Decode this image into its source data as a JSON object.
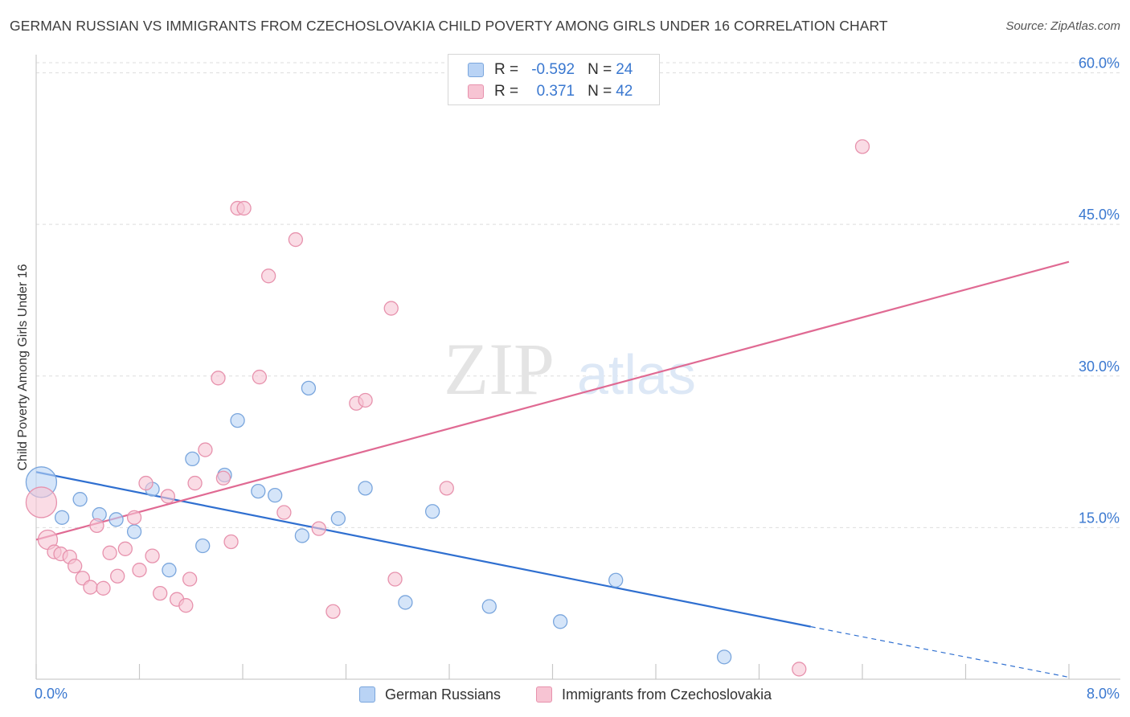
{
  "title": "GERMAN RUSSIAN VS IMMIGRANTS FROM CZECHOSLOVAKIA CHILD POVERTY AMONG GIRLS UNDER 16 CORRELATION CHART",
  "source": "Source: ZipAtlas.com",
  "watermark": {
    "zip": "ZIP",
    "atlas": "atlas"
  },
  "legend": {
    "r_label": "R =",
    "n_label": "N =",
    "rows": [
      {
        "r": "-0.592",
        "n": "24"
      },
      {
        "r": "0.371",
        "n": "42"
      }
    ]
  },
  "colors": {
    "series1_fill": "#b9d3f5",
    "series1_stroke": "#7aa6dd",
    "series1_line": "#2f6fd0",
    "series2_fill": "#f7c4d3",
    "series2_stroke": "#e792ad",
    "series2_line": "#e06a93",
    "tick_label": "#3a78d0"
  },
  "chart_data": {
    "type": "scatter",
    "title": "GERMAN RUSSIAN VS IMMIGRANTS FROM CZECHOSLOVAKIA CHILD POVERTY AMONG GIRLS UNDER 16 CORRELATION CHART",
    "xlabel": "",
    "ylabel": "Child Poverty Among Girls Under 16",
    "xlim": [
      0,
      8
    ],
    "ylim": [
      0,
      61
    ],
    "x_tick_labels": [
      "0.0%",
      "8.0%"
    ],
    "y_ticks": [
      15,
      30,
      45,
      60
    ],
    "y_tick_labels": [
      "15.0%",
      "30.0%",
      "45.0%",
      "60.0%"
    ],
    "grid": true,
    "series": [
      {
        "name": "German Russians",
        "r": -0.592,
        "n": 24,
        "trend": {
          "x0": 0,
          "y0": 20.5,
          "x1": 6.0,
          "y1": 5.2,
          "dashed_to_x": 8.0,
          "dashed_to_y": 0.2
        },
        "points": [
          {
            "x": 0.04,
            "y": 19.5,
            "large": true
          },
          {
            "x": 0.2,
            "y": 16.0
          },
          {
            "x": 0.34,
            "y": 17.8
          },
          {
            "x": 0.49,
            "y": 16.3
          },
          {
            "x": 0.62,
            "y": 15.8
          },
          {
            "x": 0.76,
            "y": 14.6
          },
          {
            "x": 0.9,
            "y": 18.8
          },
          {
            "x": 1.03,
            "y": 10.8
          },
          {
            "x": 1.21,
            "y": 21.8
          },
          {
            "x": 1.29,
            "y": 13.2
          },
          {
            "x": 1.46,
            "y": 20.2
          },
          {
            "x": 1.56,
            "y": 25.6
          },
          {
            "x": 1.72,
            "y": 18.6
          },
          {
            "x": 1.85,
            "y": 18.2
          },
          {
            "x": 2.06,
            "y": 14.2
          },
          {
            "x": 2.11,
            "y": 28.8
          },
          {
            "x": 2.34,
            "y": 15.9
          },
          {
            "x": 2.55,
            "y": 18.9
          },
          {
            "x": 2.86,
            "y": 7.6
          },
          {
            "x": 3.07,
            "y": 16.6
          },
          {
            "x": 3.51,
            "y": 7.2
          },
          {
            "x": 4.06,
            "y": 5.7
          },
          {
            "x": 4.49,
            "y": 9.8
          },
          {
            "x": 5.33,
            "y": 2.2
          }
        ]
      },
      {
        "name": "Immigrants from Czechoslovakia",
        "r": 0.371,
        "n": 42,
        "trend": {
          "x0": 0,
          "y0": 13.8,
          "x1": 8.0,
          "y1": 41.3
        },
        "points": [
          {
            "x": 0.04,
            "y": 17.5,
            "large": true
          },
          {
            "x": 0.09,
            "y": 13.8,
            "medium": true
          },
          {
            "x": 0.14,
            "y": 12.6
          },
          {
            "x": 0.19,
            "y": 12.4
          },
          {
            "x": 0.26,
            "y": 12.1
          },
          {
            "x": 0.3,
            "y": 11.2
          },
          {
            "x": 0.36,
            "y": 10.0
          },
          {
            "x": 0.42,
            "y": 9.1
          },
          {
            "x": 0.47,
            "y": 15.2
          },
          {
            "x": 0.52,
            "y": 9.0
          },
          {
            "x": 0.57,
            "y": 12.5
          },
          {
            "x": 0.63,
            "y": 10.2
          },
          {
            "x": 0.69,
            "y": 12.9
          },
          {
            "x": 0.76,
            "y": 16.0
          },
          {
            "x": 0.8,
            "y": 10.8
          },
          {
            "x": 0.85,
            "y": 19.4
          },
          {
            "x": 0.9,
            "y": 12.2
          },
          {
            "x": 0.96,
            "y": 8.5
          },
          {
            "x": 1.02,
            "y": 18.1
          },
          {
            "x": 1.09,
            "y": 7.9
          },
          {
            "x": 1.16,
            "y": 7.3
          },
          {
            "x": 1.19,
            "y": 9.9
          },
          {
            "x": 1.23,
            "y": 19.4
          },
          {
            "x": 1.31,
            "y": 22.7
          },
          {
            "x": 1.41,
            "y": 29.8
          },
          {
            "x": 1.45,
            "y": 19.9
          },
          {
            "x": 1.51,
            "y": 13.6
          },
          {
            "x": 1.56,
            "y": 46.6
          },
          {
            "x": 1.61,
            "y": 46.6
          },
          {
            "x": 1.73,
            "y": 29.9
          },
          {
            "x": 1.8,
            "y": 39.9
          },
          {
            "x": 1.92,
            "y": 16.5
          },
          {
            "x": 2.01,
            "y": 43.5
          },
          {
            "x": 2.19,
            "y": 14.9
          },
          {
            "x": 2.3,
            "y": 6.7
          },
          {
            "x": 2.48,
            "y": 27.3
          },
          {
            "x": 2.55,
            "y": 27.6
          },
          {
            "x": 2.75,
            "y": 36.7
          },
          {
            "x": 2.78,
            "y": 9.9
          },
          {
            "x": 3.18,
            "y": 18.9
          },
          {
            "x": 6.4,
            "y": 52.7
          },
          {
            "x": 5.91,
            "y": 1.0
          }
        ]
      }
    ]
  }
}
